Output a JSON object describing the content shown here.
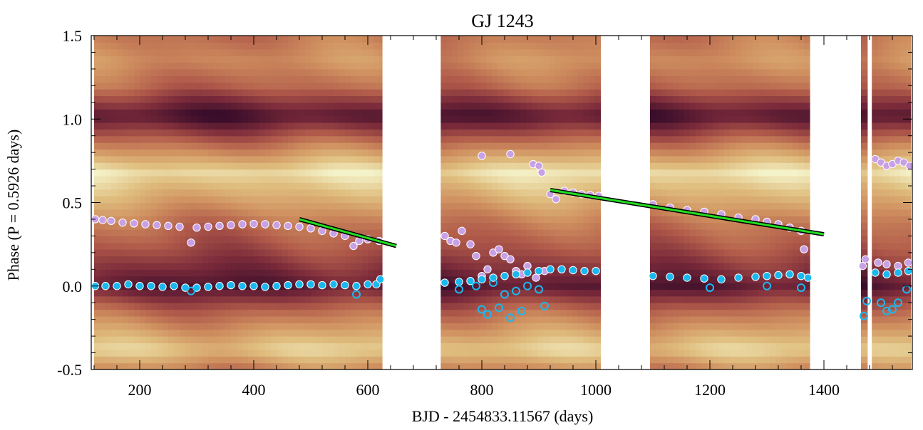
{
  "chart_data": {
    "type": "scatter",
    "title": "GJ 1243",
    "xlabel": "BJD - 2454833.11567 (days)",
    "ylabel": "Phase (P = 0.5926 days)",
    "xlim": [
      115,
      1555
    ],
    "ylim": [
      -0.5,
      1.5
    ],
    "x_ticks": [
      200,
      400,
      600,
      800,
      1000,
      1200,
      1400
    ],
    "x_tick_labels": [
      "200",
      "400",
      "600",
      "800",
      "1000",
      "1200",
      "1400"
    ],
    "y_ticks": [
      -0.5,
      0.0,
      0.5,
      1.0,
      1.5
    ],
    "y_tick_labels": [
      "-0.5",
      "0.0",
      "0.5",
      "1.0",
      "1.5"
    ],
    "grid": false,
    "legend": "none",
    "background_heatmap": {
      "colormap": [
        "#3a0d2a",
        "#7a2a3a",
        "#b05a4a",
        "#cf8f5f",
        "#e0bf80",
        "#f4f2c8"
      ],
      "segments": [
        [
          120,
          625
        ],
        [
          728,
          1008
        ],
        [
          1095,
          1375
        ],
        [
          1465,
          1476
        ],
        [
          1484,
          1552
        ]
      ],
      "phase_bands": [
        {
          "phase": -0.5,
          "level": 0.55
        },
        {
          "phase": -0.38,
          "level": 0.85
        },
        {
          "phase": -0.15,
          "level": 0.45
        },
        {
          "phase": 0.0,
          "level": 0.08
        },
        {
          "phase": 0.22,
          "level": 0.35
        },
        {
          "phase": 0.38,
          "level": 0.5
        },
        {
          "phase": 0.68,
          "level": 0.92
        },
        {
          "phase": 0.85,
          "level": 0.5
        },
        {
          "phase": 1.02,
          "level": 0.05
        },
        {
          "phase": 1.2,
          "level": 0.45
        },
        {
          "phase": 1.35,
          "level": 0.6
        },
        {
          "phase": 1.5,
          "level": 0.5
        }
      ]
    },
    "series": [
      {
        "style": "filled-circle",
        "color": "#c8a0e6",
        "points": [
          [
            122,
            0.4
          ],
          [
            135,
            0.395
          ],
          [
            150,
            0.39
          ],
          [
            170,
            0.38
          ],
          [
            190,
            0.375
          ],
          [
            210,
            0.37
          ],
          [
            230,
            0.365
          ],
          [
            250,
            0.36
          ],
          [
            270,
            0.355
          ],
          [
            290,
            0.26
          ],
          [
            300,
            0.35
          ],
          [
            320,
            0.355
          ],
          [
            340,
            0.36
          ],
          [
            360,
            0.365
          ],
          [
            380,
            0.37
          ],
          [
            400,
            0.372
          ],
          [
            420,
            0.37
          ],
          [
            440,
            0.365
          ],
          [
            460,
            0.36
          ],
          [
            480,
            0.355
          ],
          [
            500,
            0.345
          ],
          [
            520,
            0.33
          ],
          [
            540,
            0.315
          ],
          [
            560,
            0.3
          ],
          [
            575,
            0.24
          ],
          [
            585,
            0.27
          ],
          [
            600,
            0.28
          ],
          [
            620,
            0.27
          ],
          [
            735,
            0.3
          ],
          [
            745,
            0.27
          ],
          [
            755,
            0.26
          ],
          [
            765,
            0.33
          ],
          [
            780,
            0.25
          ],
          [
            790,
            0.18
          ],
          [
            800,
            0.78
          ],
          [
            800,
            0.06
          ],
          [
            810,
            0.1
          ],
          [
            820,
            0.2
          ],
          [
            830,
            0.22
          ],
          [
            840,
            0.18
          ],
          [
            850,
            0.79
          ],
          [
            850,
            0.16
          ],
          [
            860,
            0.09
          ],
          [
            870,
            0.07
          ],
          [
            880,
            0.12
          ],
          [
            890,
            0.73
          ],
          [
            895,
            0.05
          ],
          [
            900,
            0.72
          ],
          [
            905,
            0.68
          ],
          [
            910,
            0.09
          ],
          [
            920,
            0.55
          ],
          [
            930,
            0.52
          ],
          [
            945,
            0.57
          ],
          [
            960,
            0.56
          ],
          [
            975,
            0.55
          ],
          [
            990,
            0.545
          ],
          [
            1005,
            0.54
          ],
          [
            1100,
            0.49
          ],
          [
            1130,
            0.47
          ],
          [
            1160,
            0.455
          ],
          [
            1190,
            0.445
          ],
          [
            1220,
            0.43
          ],
          [
            1250,
            0.41
          ],
          [
            1280,
            0.4
          ],
          [
            1300,
            0.385
          ],
          [
            1320,
            0.37
          ],
          [
            1340,
            0.35
          ],
          [
            1360,
            0.33
          ],
          [
            1365,
            0.22
          ],
          [
            1468,
            0.12
          ],
          [
            1473,
            0.16
          ],
          [
            1490,
            0.76
          ],
          [
            1500,
            0.74
          ],
          [
            1510,
            0.72
          ],
          [
            1520,
            0.73
          ],
          [
            1530,
            0.75
          ],
          [
            1540,
            0.74
          ],
          [
            1550,
            0.72
          ],
          [
            1495,
            0.14
          ],
          [
            1510,
            0.13
          ],
          [
            1530,
            0.12
          ],
          [
            1548,
            0.14
          ]
        ]
      },
      {
        "style": "filled-circle",
        "color": "#1ab8f0",
        "points": [
          [
            122,
            0.0
          ],
          [
            140,
            0.0
          ],
          [
            160,
            0.0
          ],
          [
            180,
            0.01
          ],
          [
            200,
            0.0
          ],
          [
            220,
            0.0
          ],
          [
            240,
            -0.005
          ],
          [
            260,
            0.0
          ],
          [
            280,
            -0.01
          ],
          [
            300,
            -0.01
          ],
          [
            320,
            -0.005
          ],
          [
            340,
            0.0
          ],
          [
            360,
            0.005
          ],
          [
            380,
            0.0
          ],
          [
            400,
            0.0
          ],
          [
            420,
            -0.005
          ],
          [
            440,
            0.0
          ],
          [
            460,
            0.005
          ],
          [
            480,
            0.01
          ],
          [
            500,
            0.01
          ],
          [
            520,
            0.005
          ],
          [
            540,
            0.01
          ],
          [
            560,
            0.005
          ],
          [
            580,
            0.0
          ],
          [
            600,
            0.01
          ],
          [
            615,
            0.01
          ],
          [
            622,
            0.04
          ],
          [
            735,
            0.02
          ],
          [
            760,
            0.025
          ],
          [
            780,
            0.03
          ],
          [
            800,
            0.04
          ],
          [
            820,
            0.05
          ],
          [
            840,
            0.06
          ],
          [
            860,
            0.07
          ],
          [
            880,
            0.08
          ],
          [
            900,
            0.09
          ],
          [
            920,
            0.1
          ],
          [
            940,
            0.1
          ],
          [
            960,
            0.095
          ],
          [
            980,
            0.09
          ],
          [
            1000,
            0.09
          ],
          [
            1100,
            0.06
          ],
          [
            1130,
            0.055
          ],
          [
            1160,
            0.05
          ],
          [
            1190,
            0.045
          ],
          [
            1220,
            0.04
          ],
          [
            1250,
            0.05
          ],
          [
            1280,
            0.055
          ],
          [
            1300,
            0.06
          ],
          [
            1320,
            0.065
          ],
          [
            1340,
            0.07
          ],
          [
            1360,
            0.06
          ],
          [
            1372,
            0.05
          ],
          [
            1490,
            0.08
          ],
          [
            1510,
            0.07
          ],
          [
            1530,
            0.08
          ],
          [
            1548,
            0.09
          ]
        ]
      },
      {
        "style": "open-circle",
        "color": "#1ab8f0",
        "points": [
          [
            290,
            -0.03
          ],
          [
            580,
            -0.05
          ],
          [
            760,
            -0.02
          ],
          [
            790,
            0.0
          ],
          [
            800,
            -0.14
          ],
          [
            810,
            -0.17
          ],
          [
            820,
            0.02
          ],
          [
            830,
            -0.13
          ],
          [
            840,
            -0.05
          ],
          [
            850,
            -0.19
          ],
          [
            860,
            -0.03
          ],
          [
            870,
            -0.15
          ],
          [
            880,
            0.0
          ],
          [
            900,
            -0.02
          ],
          [
            910,
            -0.12
          ],
          [
            1200,
            -0.01
          ],
          [
            1300,
            0.0
          ],
          [
            1360,
            -0.01
          ],
          [
            1470,
            -0.18
          ],
          [
            1475,
            -0.09
          ],
          [
            1500,
            -0.1
          ],
          [
            1510,
            -0.15
          ],
          [
            1520,
            -0.14
          ],
          [
            1530,
            -0.1
          ],
          [
            1545,
            -0.02
          ]
        ]
      },
      {
        "style": "line",
        "color": "#22dd22",
        "points": [
          [
            480,
            0.4
          ],
          [
            650,
            0.24
          ]
        ]
      },
      {
        "style": "line",
        "color": "#22dd22",
        "points": [
          [
            920,
            0.575
          ],
          [
            1400,
            0.31
          ]
        ]
      }
    ]
  }
}
